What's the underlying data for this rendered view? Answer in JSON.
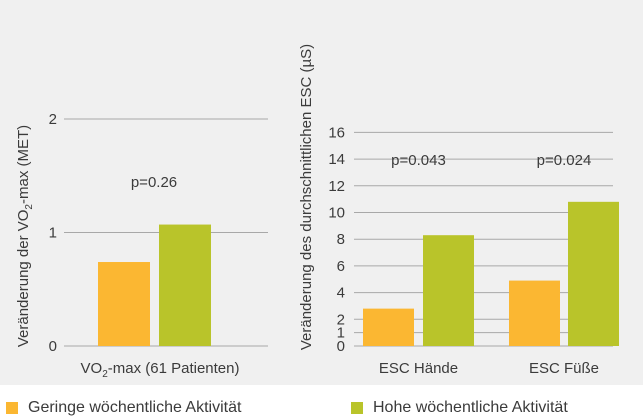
{
  "colors": {
    "low": "#fbb732",
    "high": "#b9c42a",
    "grid": "#a8a8a8",
    "text": "#3b3b3b",
    "bg": "#f0f0f0"
  },
  "legend": {
    "low": "Geringe wöchentliche Aktivität",
    "high": "Hohe wöchentliche Aktivität"
  },
  "chart_data": [
    {
      "type": "bar",
      "ylabel": "Veränderung der VO₂-max (MET)",
      "ylabel_parts": [
        "Veränderung der VO",
        "2",
        "-max (MET)"
      ],
      "categories": [
        "VO₂-max (61 Patienten)"
      ],
      "category_parts": [
        "VO",
        "2",
        "-max (61 Patienten)"
      ],
      "ylim": [
        0,
        2.2
      ],
      "yticks": [
        "0",
        "1",
        "2"
      ],
      "ytick_values": [
        0,
        1,
        2
      ],
      "grid": true,
      "annotations": [
        "p=0.26"
      ],
      "series": [
        {
          "key": "low",
          "values": [
            0.74
          ]
        },
        {
          "key": "high",
          "values": [
            1.07
          ]
        }
      ]
    },
    {
      "type": "bar",
      "ylabel": "Veränderung des durchschnittlichen ESC (µS)",
      "categories": [
        "ESC Hände",
        "ESC Füße"
      ],
      "ylim": [
        0,
        17
      ],
      "yticks": [
        "0",
        "1",
        "2",
        "4",
        "6",
        "8",
        "10",
        "12",
        "14",
        "16"
      ],
      "ytick_values": [
        0,
        1,
        2,
        4,
        6,
        8,
        10,
        12,
        14,
        16
      ],
      "grid": true,
      "annotations": [
        "p=0.043",
        "p=0.024"
      ],
      "series": [
        {
          "key": "low",
          "values": [
            2.8,
            4.9
          ]
        },
        {
          "key": "high",
          "values": [
            8.3,
            10.8
          ]
        }
      ]
    }
  ]
}
